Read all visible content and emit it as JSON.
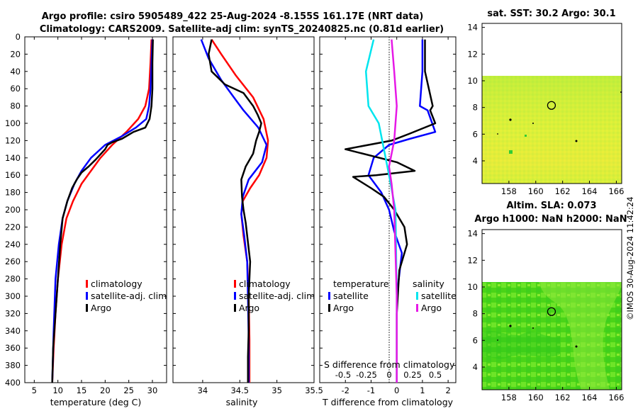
{
  "titles": {
    "line1": "Argo profile: csiro 5905489_422 25-Aug-2024 -8.155S 161.17E (NRT data)",
    "line2": "Climatology: CARS2009. Satellite-adj clim: synTS_20240825.nc (0.81d earlier)",
    "sst": "sat. SST: 30.2 Argo: 30.1",
    "sla1": "Altim. SLA: 0.073",
    "sla2": "Argo h1000: NaN h2000: NaN",
    "stamp": "©IMOS 30-Aug-2024 11:42:24"
  },
  "colors": {
    "red": "#ff0000",
    "blue": "#0000ff",
    "black": "#000000",
    "cyan": "#00e5ee",
    "magenta": "#e619e6"
  },
  "chart_data": [
    {
      "type": "line",
      "xlabel": "temperature (deg C)",
      "ylabel": "",
      "xlim": [
        3,
        33
      ],
      "ylim": [
        400,
        0
      ],
      "xticks": [
        5,
        10,
        15,
        20,
        25,
        30
      ],
      "yticks": [
        0,
        20,
        40,
        60,
        80,
        100,
        120,
        140,
        160,
        180,
        200,
        220,
        240,
        260,
        280,
        300,
        320,
        340,
        360,
        380,
        400
      ],
      "legend": [
        "climatology",
        "satellite-adj. clim",
        "Argo"
      ],
      "series": [
        {
          "name": "climatology",
          "color": "red",
          "x": [
            29.8,
            29.6,
            29.3,
            28.5,
            27.0,
            24.5,
            21.5,
            19.0,
            17.0,
            15.0,
            13.2,
            11.8,
            10.8,
            10.0,
            9.5,
            9.1,
            8.8
          ],
          "y": [
            3,
            30,
            60,
            80,
            95,
            110,
            125,
            140,
            155,
            170,
            190,
            210,
            240,
            280,
            320,
            360,
            400
          ]
        },
        {
          "name": "satellite-adj. clim",
          "color": "blue",
          "x": [
            30.0,
            29.8,
            29.6,
            29.3,
            28.7,
            26.5,
            23.5,
            20.0,
            17.0,
            15.0,
            13.5,
            12.0,
            11.0,
            10.2,
            9.5,
            9.1,
            8.8
          ],
          "y": [
            3,
            30,
            60,
            80,
            95,
            105,
            115,
            125,
            140,
            155,
            170,
            190,
            210,
            240,
            280,
            340,
            400
          ]
        },
        {
          "name": "Argo",
          "color": "black",
          "x": [
            30.1,
            30.0,
            30.0,
            29.8,
            29.4,
            28.5,
            26.0,
            23.5,
            21.5,
            20.5,
            20.0,
            18.0,
            16.5,
            15.0,
            14.0,
            13.0,
            12.0,
            11.0,
            10.5,
            10.0,
            9.5,
            9.0,
            8.8
          ],
          "y": [
            3,
            30,
            60,
            80,
            95,
            105,
            110,
            118,
            122,
            125,
            130,
            142,
            150,
            157,
            165,
            175,
            190,
            210,
            240,
            280,
            320,
            360,
            400
          ]
        }
      ]
    },
    {
      "type": "line",
      "xlabel": "salinity",
      "xlim": [
        33.6,
        35.5
      ],
      "ylim": [
        400,
        0
      ],
      "xticks": [
        34,
        34.5,
        35,
        35.5
      ],
      "legend": [
        "climatology",
        "satellite-adj. clim",
        "Argo"
      ],
      "series": [
        {
          "name": "climatology",
          "color": "red",
          "x": [
            34.12,
            34.25,
            34.45,
            34.68,
            34.82,
            34.88,
            34.86,
            34.76,
            34.64,
            34.54,
            34.52,
            34.55,
            34.6,
            34.62,
            34.63,
            34.63
          ],
          "y": [
            3,
            20,
            45,
            70,
            95,
            120,
            140,
            160,
            175,
            190,
            205,
            230,
            260,
            300,
            350,
            400
          ]
        },
        {
          "name": "satellite-adj. clim",
          "color": "blue",
          "x": [
            33.98,
            34.08,
            34.25,
            34.42,
            34.55,
            34.75,
            34.86,
            34.8,
            34.62,
            34.54,
            34.52,
            34.56,
            34.6,
            34.61,
            34.62,
            34.62
          ],
          "y": [
            3,
            25,
            50,
            70,
            85,
            105,
            125,
            145,
            165,
            185,
            205,
            230,
            260,
            300,
            350,
            400
          ]
        },
        {
          "name": "Argo",
          "color": "black",
          "x": [
            34.12,
            34.08,
            34.12,
            34.3,
            34.55,
            34.68,
            34.74,
            34.79,
            34.76,
            34.72,
            34.68,
            34.58,
            34.52,
            34.53,
            34.55,
            34.58,
            34.6,
            34.64,
            34.62,
            34.62,
            34.61,
            34.61
          ],
          "y": [
            3,
            20,
            40,
            55,
            65,
            80,
            90,
            100,
            110,
            120,
            135,
            150,
            165,
            185,
            200,
            215,
            230,
            260,
            300,
            340,
            370,
            400
          ]
        }
      ]
    },
    {
      "type": "line",
      "xlabel": "T difference from climatology",
      "xlabel2": "S difference from climatology",
      "xlim": [
        -3,
        2.3
      ],
      "ylim": [
        400,
        0
      ],
      "xticks": [
        -2,
        -1,
        0,
        1,
        2
      ],
      "x2ticks": [
        "-0.5",
        "-0.25",
        "0",
        "0.25",
        "0.5"
      ],
      "legend": [
        "temperature",
        "satellite",
        "Argo",
        "salinity",
        "satellite",
        "Argo"
      ],
      "series": [
        {
          "name": "temperature satellite",
          "color": "blue",
          "x": [
            1.0,
            1.0,
            0.9,
            1.2,
            1.5,
            0.5,
            -0.3,
            -0.9,
            -1.1,
            -0.6,
            -0.3,
            -0.1,
            0.2,
            0.0,
            0.0,
            0.0
          ],
          "y": [
            3,
            40,
            80,
            85,
            110,
            118,
            125,
            140,
            160,
            180,
            200,
            225,
            250,
            300,
            350,
            400
          ]
        },
        {
          "name": "temperature Argo",
          "color": "black",
          "x": [
            1.1,
            1.1,
            1.4,
            1.3,
            1.5,
            0.5,
            -0.2,
            -2.0,
            0.0,
            0.7,
            -0.8,
            -1.7,
            -1.0,
            -0.5,
            -0.1,
            0.3,
            0.4,
            0.1,
            0.0,
            0.0
          ],
          "y": [
            3,
            40,
            80,
            85,
            100,
            112,
            120,
            130,
            145,
            155,
            160,
            162,
            175,
            185,
            200,
            220,
            240,
            270,
            320,
            400
          ]
        },
        {
          "name": "salinity satellite",
          "color": "cyan",
          "x": [
            -0.9,
            -1.2,
            -1.1,
            -0.7,
            -0.5,
            -0.3,
            -0.05,
            0.0,
            0.0
          ],
          "y": [
            3,
            40,
            80,
            100,
            130,
            160,
            200,
            300,
            400
          ]
        },
        {
          "name": "salinity Argo",
          "color": "magenta",
          "x": [
            -0.2,
            -0.1,
            0.0,
            -0.1,
            -0.3,
            -0.2,
            -0.1,
            0.0,
            0.0
          ],
          "y": [
            3,
            40,
            80,
            120,
            150,
            170,
            200,
            300,
            400
          ]
        }
      ]
    },
    {
      "type": "heatmap",
      "title": "sat. SST: 30.2 Argo: 30.1",
      "xlim": [
        156,
        166.4
      ],
      "ylim": [
        2.3,
        14.3
      ],
      "xticks": [
        158,
        160,
        162,
        164,
        166
      ],
      "yticks": [
        4,
        6,
        8,
        10,
        12,
        14
      ],
      "marker": {
        "x": 161.17,
        "y": 8.155
      }
    },
    {
      "type": "heatmap",
      "title": "Altim. SLA: 0.073",
      "xlim": [
        156,
        166.4
      ],
      "ylim": [
        2.3,
        14.3
      ],
      "xticks": [
        158,
        160,
        162,
        164,
        166
      ],
      "yticks": [
        4,
        6,
        8,
        10,
        12,
        14
      ],
      "marker": {
        "x": 161.17,
        "y": 8.155
      }
    }
  ]
}
